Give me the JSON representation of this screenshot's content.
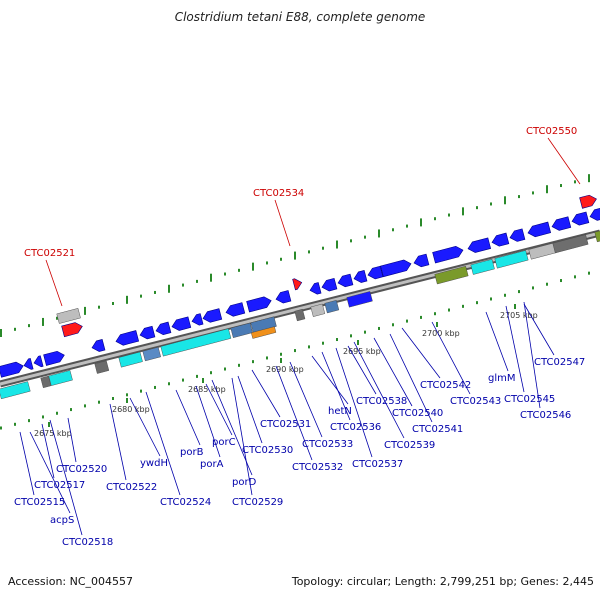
{
  "title": "Clostridium tetani E88, complete genome",
  "footer": {
    "accession": "Accession: NC_004557",
    "summary": "Topology: circular; Length: 2,799,251 bp; Genes: 2,445"
  },
  "colors": {
    "backbone": "#9a9a9a",
    "gene_forward": "#1a1aff",
    "gene_cds": "#19e6e6",
    "gene_trna": "#7a9a2a",
    "gene_grey": "#bdbdbd",
    "gene_dark": "#6b6b6b",
    "highlight": "#ff1a1a",
    "gc_dash": "#2a8a2a",
    "label_black": "#0000aa",
    "label_red": "#cc0000"
  },
  "scale_labels": [
    "2675 kbp",
    "2680 kbp",
    "2685 kbp",
    "2690 kbp",
    "2695 kbp",
    "2700 kbp",
    "2705 kbp"
  ],
  "gene_labels": [
    "CTC02515",
    "acpS",
    "CTC02517",
    "CTC02518",
    "CTC02520",
    "CTC02522",
    "ywdH",
    "CTC02524",
    "porB",
    "porA",
    "porC",
    "porD",
    "CTC02529",
    "CTC02530",
    "CTC02531",
    "CTC02532",
    "CTC02533",
    "hetN",
    "CTC02536",
    "CTC02537",
    "CTC02538",
    "CTC02539",
    "CTC02540",
    "CTC02541",
    "CTC02542",
    "CTC02543",
    "glmM",
    "CTC02545",
    "CTC02546",
    "CTC02547"
  ],
  "highlight_labels": [
    "CTC02521",
    "CTC02534",
    "CTC02550"
  ]
}
